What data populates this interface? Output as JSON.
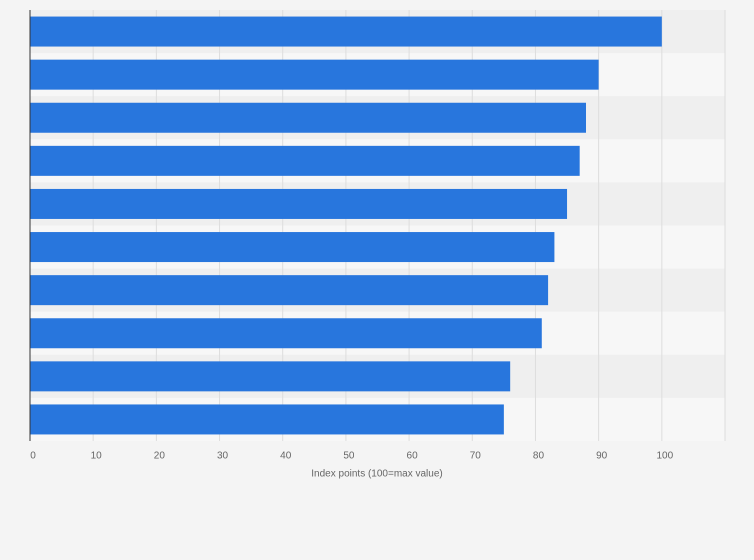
{
  "chart_data": {
    "type": "bar",
    "orientation": "horizontal",
    "xlabel": "Index points (100=max value)",
    "categories": [
      null,
      null,
      null,
      null,
      null,
      null,
      null,
      null,
      null,
      null
    ],
    "values": [
      100,
      90,
      88,
      87,
      85,
      83,
      82,
      81,
      76,
      75
    ],
    "color": "#2876dd",
    "xlim": [
      0,
      110
    ],
    "xticks": [
      0,
      10,
      20,
      30,
      40,
      50,
      60,
      70,
      80,
      90,
      100
    ],
    "grid": true
  }
}
